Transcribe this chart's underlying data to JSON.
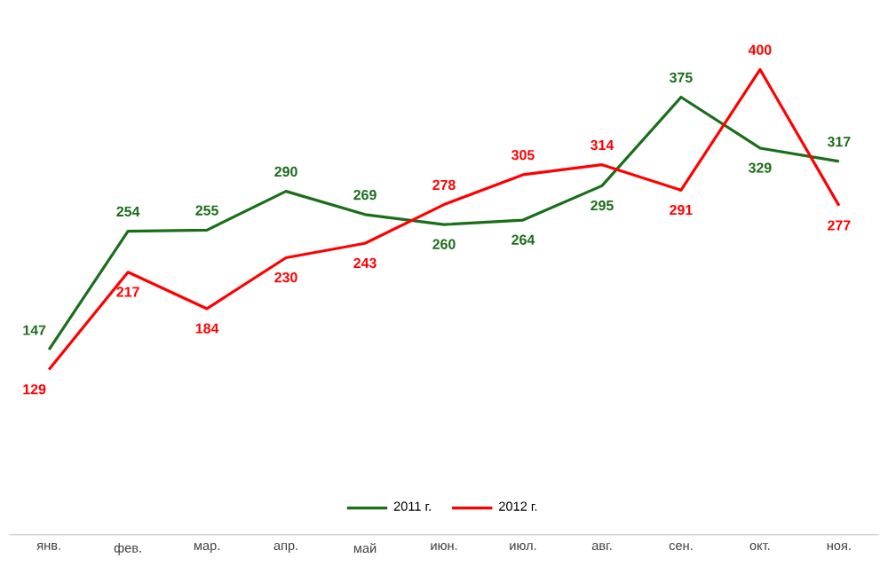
{
  "chart_data": {
    "type": "line",
    "categories": [
      "янв.",
      "фев.",
      "мар.",
      "апр.",
      "май",
      "июн.",
      "июл.",
      "авг.",
      "сен.",
      "окт.",
      "ноя."
    ],
    "series": [
      {
        "name": "2011 г.",
        "color": "#1a6e1a",
        "values": [
          147,
          254,
          255,
          290,
          269,
          260,
          264,
          295,
          375,
          329,
          317
        ]
      },
      {
        "name": "2012 г.",
        "color": "#ff0000",
        "values": [
          129,
          217,
          184,
          230,
          243,
          278,
          305,
          314,
          291,
          400,
          277
        ]
      }
    ],
    "data_labels": true,
    "legend": "bottom",
    "grid": false,
    "marker": "none",
    "line_style": "solid"
  }
}
